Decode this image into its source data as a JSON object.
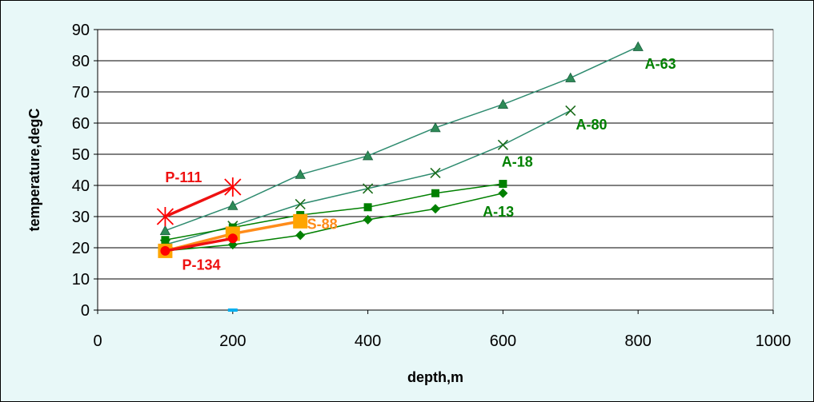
{
  "chart_data": {
    "type": "line",
    "xlabel": "depth,m",
    "ylabel": "temperature,degC",
    "xlim": [
      0,
      1000
    ],
    "ylim": [
      0,
      90
    ],
    "x_ticks": [
      0,
      200,
      400,
      600,
      800,
      1000
    ],
    "y_ticks": [
      0,
      10,
      20,
      30,
      40,
      50,
      60,
      70,
      80,
      90
    ],
    "grid": "horizontal",
    "legend": "none (series labelled inline)",
    "background": "#e8f8f8",
    "plot_background": "#ffffff",
    "series": [
      {
        "name": "A-63",
        "color": "#2e8b6f",
        "line_width": 1.5,
        "marker": "triangle",
        "marker_color": "#2e8b57",
        "x": [
          100,
          200,
          300,
          400,
          500,
          600,
          700,
          800
        ],
        "y": [
          25.5,
          33.5,
          43.5,
          49.5,
          58.5,
          66,
          74.5,
          84.5
        ]
      },
      {
        "name": "A-80",
        "color": "#2e8b6f",
        "line_width": 1.5,
        "marker": "x",
        "marker_color": "#1a6b1a",
        "x": [
          100,
          200,
          300,
          400,
          500,
          600,
          700
        ],
        "y": [
          21,
          27,
          34,
          39,
          44,
          53,
          64
        ]
      },
      {
        "name": "A-18",
        "color": "#008000",
        "line_width": 1.5,
        "marker": "square",
        "marker_color": "#008000",
        "x": [
          100,
          200,
          300,
          400,
          500,
          600
        ],
        "y": [
          22.5,
          26.5,
          30.5,
          33,
          37.5,
          40.5
        ]
      },
      {
        "name": "A-13",
        "color": "#008000",
        "line_width": 1.5,
        "marker": "diamond",
        "marker_color": "#008000",
        "x": [
          100,
          200,
          300,
          400,
          500,
          600
        ],
        "y": [
          19,
          21,
          24,
          29,
          32.5,
          37.5
        ]
      },
      {
        "name": "S-88",
        "color": "#ff8c1a",
        "line_width": 3.5,
        "marker": "square",
        "marker_color": "#ffa500",
        "x": [
          100,
          200,
          300
        ],
        "y": [
          19,
          24.5,
          28.5
        ]
      },
      {
        "name": "P-134",
        "color": "#ee1111",
        "line_width": 3.5,
        "marker": "circle",
        "marker_color": "#ff0000",
        "x": [
          100,
          200
        ],
        "y": [
          19,
          23
        ]
      },
      {
        "name": "P-111",
        "color": "#ee1111",
        "line_width": 3.5,
        "marker": "asterisk",
        "marker_color": "#ff0000",
        "x": [
          100,
          200
        ],
        "y": [
          30,
          39.5
        ]
      }
    ],
    "stray_points": [
      {
        "x": 200,
        "y": 0,
        "color": "#00b0f0"
      }
    ],
    "series_labels": [
      {
        "text": "A-63",
        "x": 810,
        "y": 77.5,
        "color": "#008000"
      },
      {
        "text": "A-80",
        "x": 708,
        "y": 58,
        "color": "#008000"
      },
      {
        "text": "A-18",
        "x": 598,
        "y": 46,
        "color": "#008000"
      },
      {
        "text": "A-13",
        "x": 570,
        "y": 30,
        "color": "#008000"
      },
      {
        "text": "S-88",
        "x": 310,
        "y": 26,
        "color": "#ff8c1a"
      },
      {
        "text": "P-111",
        "x": 100,
        "y": 41,
        "color": "#ee1111"
      },
      {
        "text": "P-134",
        "x": 125,
        "y": 13,
        "color": "#ee1111"
      }
    ]
  }
}
